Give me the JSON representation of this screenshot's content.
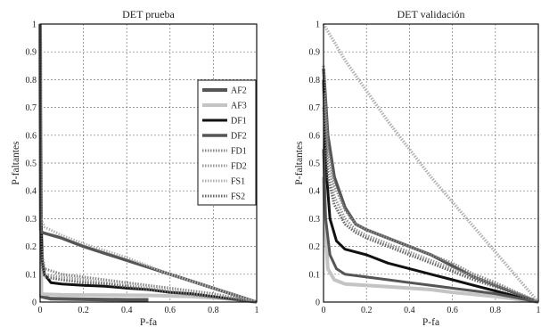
{
  "chart_data": [
    {
      "type": "line",
      "title": "DET prueba",
      "xlabel": "P-fa",
      "ylabel": "P-faltantes",
      "xlim": [
        0,
        1
      ],
      "ylim": [
        0,
        1
      ],
      "xticks": [
        "0",
        "0.2",
        "0.4",
        "0.6",
        "0.8",
        "1"
      ],
      "yticks": [
        "0",
        "0.1",
        "0.2",
        "0.3",
        "0.4",
        "0.5",
        "0.6",
        "0.7",
        "0.8",
        "0.9",
        "1"
      ],
      "grid": true,
      "legend": "right",
      "series": [
        {
          "name": "AF2",
          "color": "#555555",
          "style": "solid",
          "width": 4,
          "x": [
            0,
            0.005,
            0.05,
            0.2,
            0.4,
            0.5
          ],
          "y": [
            1,
            0.02,
            0.012,
            0.01,
            0.008,
            0.008
          ]
        },
        {
          "name": "AF3",
          "color": "#c4c4c4",
          "style": "solid",
          "width": 4,
          "x": [
            0,
            0.005,
            0.02,
            0.1,
            0.3,
            0.5,
            0.7,
            0.9,
            1
          ],
          "y": [
            1,
            0.03,
            0.028,
            0.026,
            0.025,
            0.024,
            0.02,
            0.01,
            0
          ]
        },
        {
          "name": "DF1",
          "color": "#111111",
          "style": "solid",
          "width": 3,
          "x": [
            0,
            0.005,
            0.01,
            0.02,
            0.05,
            0.1,
            0.2,
            0.3,
            0.4,
            0.5,
            0.6,
            0.7,
            0.8,
            0.9,
            1
          ],
          "y": [
            1,
            0.3,
            0.15,
            0.1,
            0.07,
            0.065,
            0.06,
            0.057,
            0.05,
            0.045,
            0.035,
            0.03,
            0.02,
            0.01,
            0
          ]
        },
        {
          "name": "DF2",
          "color": "#555555",
          "style": "solid",
          "width": 3.5,
          "x": [
            0,
            0.003,
            0.01,
            0.1,
            0.2,
            0.3,
            0.4,
            0.5,
            0.6,
            0.7,
            0.8,
            0.9,
            1
          ],
          "y": [
            1,
            0.26,
            0.25,
            0.23,
            0.2,
            0.175,
            0.15,
            0.125,
            0.1,
            0.075,
            0.05,
            0.025,
            0
          ]
        },
        {
          "name": "FD1",
          "color": "#888888",
          "style": "dotted",
          "width": 3,
          "x": [
            0,
            0.004,
            0.02,
            0.1,
            0.2,
            0.3,
            0.4,
            0.5,
            0.6,
            0.7,
            0.8,
            0.9,
            1
          ],
          "y": [
            1,
            0.2,
            0.12,
            0.1,
            0.09,
            0.08,
            0.07,
            0.06,
            0.05,
            0.04,
            0.03,
            0.015,
            0
          ]
        },
        {
          "name": "FD2",
          "color": "#999999",
          "style": "dotted",
          "width": 3,
          "x": [
            0,
            0.004,
            0.02,
            0.1,
            0.2,
            0.3,
            0.4,
            0.5,
            0.6,
            0.7,
            0.8,
            0.9,
            1
          ],
          "y": [
            1,
            0.17,
            0.1,
            0.09,
            0.08,
            0.07,
            0.06,
            0.05,
            0.04,
            0.03,
            0.02,
            0.01,
            0
          ]
        },
        {
          "name": "FS1",
          "color": "#b0b0b0",
          "style": "dotted",
          "width": 3,
          "x": [
            0,
            0.004,
            0.02,
            0.1,
            0.2,
            0.4,
            0.6,
            0.8,
            1
          ],
          "y": [
            1,
            0.3,
            0.27,
            0.24,
            0.21,
            0.16,
            0.1,
            0.05,
            0
          ]
        },
        {
          "name": "FS2",
          "color": "#666666",
          "style": "dotted",
          "width": 3,
          "x": [
            0,
            0.004,
            0.02,
            0.1,
            0.2,
            0.3,
            0.4,
            0.5,
            0.6,
            0.7,
            0.8,
            0.9,
            1
          ],
          "y": [
            1,
            0.15,
            0.09,
            0.08,
            0.07,
            0.065,
            0.055,
            0.045,
            0.035,
            0.027,
            0.018,
            0.008,
            0
          ]
        }
      ]
    },
    {
      "type": "line",
      "title": "DET validación",
      "xlabel": "P-fa",
      "ylabel": "P-faltantes",
      "xlim": [
        0,
        1
      ],
      "ylim": [
        0,
        1
      ],
      "xticks": [
        "0",
        "0.2",
        "0.4",
        "0.6",
        "0.8",
        "1"
      ],
      "yticks": [
        "0",
        "0.1",
        "0.2",
        "0.3",
        "0.4",
        "0.5",
        "0.6",
        "0.7",
        "0.8",
        "0.9",
        "1"
      ],
      "grid": true,
      "series": [
        {
          "name": "AF2",
          "color": "#555555",
          "style": "solid",
          "width": 3.5,
          "x": [
            0,
            0.02,
            0.05,
            0.1,
            0.15,
            0.2,
            0.3,
            0.4,
            0.5,
            0.6,
            0.7,
            0.8,
            0.9,
            1
          ],
          "y": [
            0.84,
            0.6,
            0.45,
            0.34,
            0.28,
            0.26,
            0.23,
            0.2,
            0.17,
            0.13,
            0.09,
            0.06,
            0.03,
            0
          ]
        },
        {
          "name": "AF3",
          "color": "#c4c4c4",
          "style": "solid",
          "width": 4,
          "x": [
            0,
            0.01,
            0.02,
            0.05,
            0.1,
            0.2,
            0.3,
            0.5,
            0.6,
            0.8,
            1
          ],
          "y": [
            0.45,
            0.25,
            0.12,
            0.08,
            0.065,
            0.06,
            0.055,
            0.045,
            0.035,
            0.02,
            0
          ]
        },
        {
          "name": "DF1",
          "color": "#111111",
          "style": "solid",
          "width": 3,
          "x": [
            0,
            0.01,
            0.03,
            0.06,
            0.1,
            0.2,
            0.3,
            0.4,
            0.5,
            0.6,
            0.7,
            0.8,
            0.9,
            1
          ],
          "y": [
            0.8,
            0.5,
            0.3,
            0.22,
            0.19,
            0.17,
            0.14,
            0.12,
            0.1,
            0.08,
            0.06,
            0.04,
            0.02,
            0
          ]
        },
        {
          "name": "DF2",
          "color": "#555555",
          "style": "solid",
          "width": 3,
          "x": [
            0,
            0.01,
            0.03,
            0.06,
            0.1,
            0.2,
            0.3,
            0.4,
            0.5,
            0.6,
            0.7,
            0.8,
            0.9,
            1
          ],
          "y": [
            0.55,
            0.3,
            0.17,
            0.12,
            0.1,
            0.09,
            0.08,
            0.07,
            0.06,
            0.05,
            0.04,
            0.03,
            0.015,
            0
          ]
        },
        {
          "name": "FD1",
          "color": "#888888",
          "style": "dotted",
          "width": 3,
          "x": [
            0,
            0.02,
            0.05,
            0.1,
            0.15,
            0.2,
            0.3,
            0.4,
            0.5,
            0.6,
            0.7,
            0.8,
            0.9,
            1
          ],
          "y": [
            0.85,
            0.55,
            0.42,
            0.33,
            0.28,
            0.26,
            0.23,
            0.2,
            0.17,
            0.14,
            0.1,
            0.07,
            0.035,
            0
          ]
        },
        {
          "name": "FD2",
          "color": "#999999",
          "style": "dotted",
          "width": 3,
          "x": [
            0,
            0.02,
            0.05,
            0.1,
            0.15,
            0.2,
            0.3,
            0.4,
            0.5,
            0.6,
            0.7,
            0.8,
            0.9,
            1
          ],
          "y": [
            0.75,
            0.5,
            0.38,
            0.3,
            0.26,
            0.24,
            0.21,
            0.18,
            0.15,
            0.12,
            0.09,
            0.06,
            0.03,
            0
          ]
        },
        {
          "name": "FS1",
          "color": "#b0b0b0",
          "style": "dotted",
          "width": 3.5,
          "x": [
            0,
            0.1,
            0.2,
            0.3,
            0.4,
            0.5,
            0.6,
            0.7,
            0.8,
            0.9,
            1
          ],
          "y": [
            1,
            0.87,
            0.76,
            0.65,
            0.55,
            0.45,
            0.36,
            0.27,
            0.18,
            0.09,
            0
          ]
        },
        {
          "name": "FS2",
          "color": "#666666",
          "style": "dotted",
          "width": 3,
          "x": [
            0,
            0.02,
            0.05,
            0.1,
            0.15,
            0.2,
            0.3,
            0.4,
            0.5,
            0.6,
            0.7,
            0.8,
            0.9,
            1
          ],
          "y": [
            0.7,
            0.45,
            0.35,
            0.28,
            0.25,
            0.23,
            0.2,
            0.17,
            0.14,
            0.11,
            0.08,
            0.055,
            0.028,
            0
          ]
        }
      ]
    }
  ]
}
